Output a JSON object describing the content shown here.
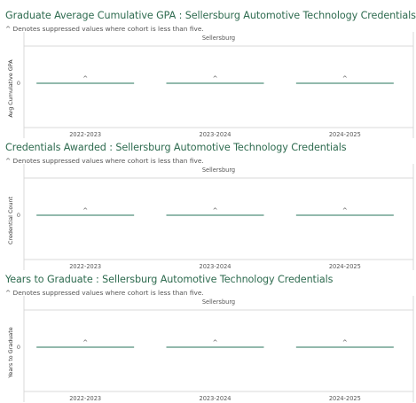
{
  "panels": [
    {
      "title": "Graduate Average Cumulative GPA : Sellersburg Automotive Technology Credentials",
      "note": "^ Denotes suppressed values where cohort is less than five."
    },
    {
      "title": "Credentials Awarded : Sellersburg Automotive Technology Credentials",
      "note": "^ Denotes suppressed values where cohort is less than five."
    },
    {
      "title": "Years to Graduate : Sellersburg Automotive Technology Credentials",
      "note": "^ Denotes suppressed values where cohort is less than five."
    }
  ],
  "colors": {
    "title": "#2e6b4f",
    "bar_line": "#4a8a76",
    "grid": "#d9d9d9",
    "text": "#555555"
  },
  "chart_data": [
    {
      "type": "bar",
      "column_header": "Sellersburg",
      "ylabel": "Avg Cumulative GPA",
      "categories": [
        "2022-2023",
        "2023-2024",
        "2024-2025"
      ],
      "values": [
        0,
        0,
        0
      ],
      "data_labels": [
        "^",
        "^",
        "^"
      ],
      "y_ticks": [
        "0"
      ],
      "grid": false
    },
    {
      "type": "bar",
      "column_header": "Sellersburg",
      "ylabel": "Credential Count",
      "categories": [
        "2022-2023",
        "2023-2024",
        "2024-2025"
      ],
      "values": [
        0,
        0,
        0
      ],
      "data_labels": [
        "^",
        "^",
        "^"
      ],
      "y_ticks": [
        "0"
      ],
      "grid": false
    },
    {
      "type": "bar",
      "column_header": "Sellersburg",
      "ylabel": "Years to Graduate",
      "categories": [
        "2022-2023",
        "2023-2024",
        "2024-2025"
      ],
      "values": [
        0,
        0,
        0
      ],
      "data_labels": [
        "^",
        "^",
        "^"
      ],
      "y_ticks": [
        "0"
      ],
      "grid": false
    }
  ]
}
